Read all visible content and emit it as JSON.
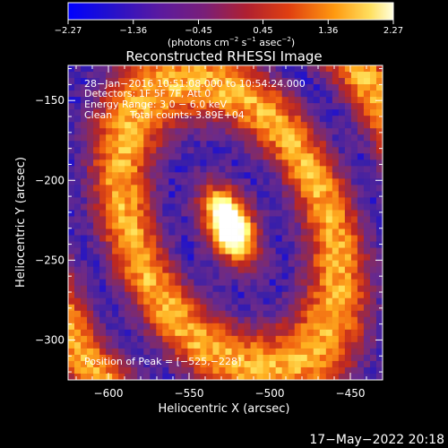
{
  "chart_data": {
    "type": "heatmap",
    "title": "Reconstructed RHESSI Image",
    "xlabel": "Heliocentric X (arcsec)",
    "ylabel": "Heliocentric Y (arcsec)",
    "xlim": [
      -625,
      -430
    ],
    "ylim": [
      -325,
      -128
    ],
    "x_ticks": [
      -600,
      -550,
      -500,
      -450
    ],
    "y_ticks": [
      -150,
      -200,
      -250,
      -300
    ],
    "x_tick_labels": [
      "−600",
      "−550",
      "−500",
      "−450"
    ],
    "y_tick_labels": [
      "−150",
      "−200",
      "−250",
      "−300"
    ],
    "colorbar": {
      "min": -2.27,
      "max": 2.27,
      "ticks": [
        -2.27,
        -1.36,
        -0.45,
        0.45,
        1.36,
        2.27
      ],
      "tick_labels": [
        "−2.27",
        "−1.36",
        "−0.45",
        "0.45",
        "1.36",
        "2.27"
      ],
      "unit_parts": [
        "(photons cm",
        "−2",
        " s",
        "−1",
        " asec",
        "−2",
        ")"
      ]
    },
    "annotations": {
      "time_range": "28−Jan−2016 10:51:08.000 to 10:54:24.000",
      "detectors": "Detectors: 1F 5F 7F, Att 0",
      "energy": "Energy Range: 3.0 − 6.0 keV",
      "clean": "Clean",
      "counts": "Total counts: 3.89E+04",
      "peak": "Position of Peak = [−525,−228]"
    },
    "peak": [
      -525,
      -228
    ],
    "date_stamp": "17−May−2022 20:18",
    "grid": false
  },
  "colors": {
    "background": "#000000",
    "foreground": "#ffffff",
    "colormap": [
      "#0000ff",
      "#3a1fa8",
      "#6a2a8c",
      "#8a2a5a",
      "#c0281e",
      "#f06010",
      "#ffb020",
      "#ffff80",
      "#ffffff"
    ]
  }
}
